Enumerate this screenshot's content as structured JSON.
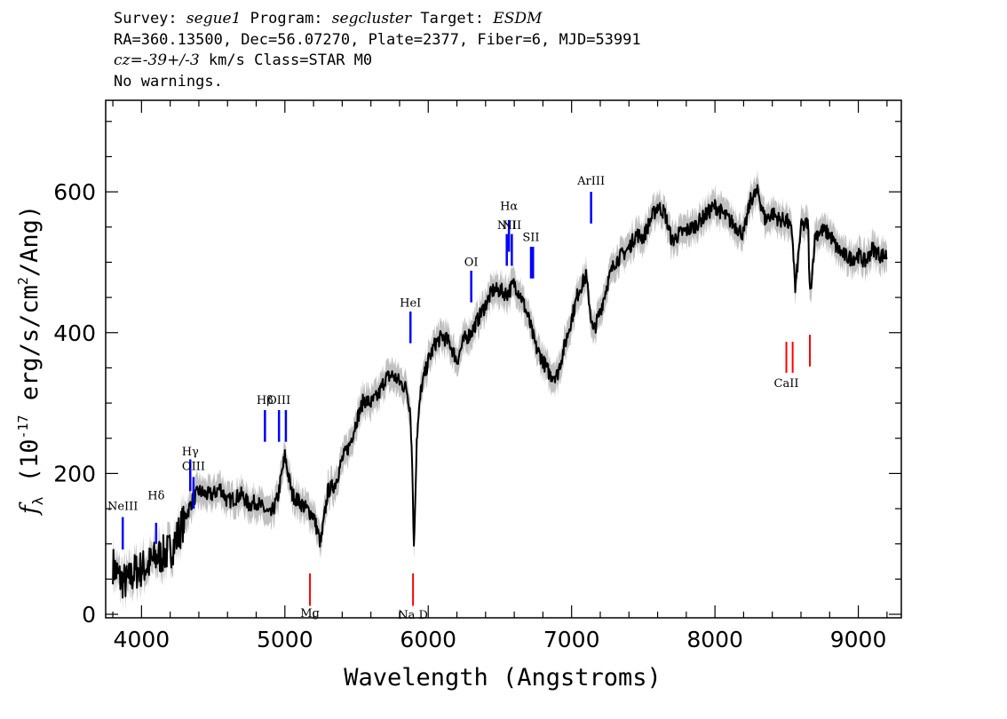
{
  "header": {
    "survey_label": "Survey:",
    "survey_value": "segue1",
    "program_label": "Program:",
    "program_value": "segcluster",
    "target_label": "Target:",
    "target_value": "ESDM",
    "line2": "RA=360.13500, Dec=56.07270, Plate=2377, Fiber=6, MJD=53991",
    "cz_label": "cz=",
    "cz_value": "-39+/-3",
    "cz_units": "km/s Class=STAR M0",
    "warnings": "No warnings."
  },
  "colors": {
    "flux": "#000000",
    "error_band": "#c0c0c0",
    "emission": "#0000ff",
    "absorption": "#ff0000",
    "axes": "#000000"
  },
  "chart_data": {
    "type": "line",
    "xlabel": "Wavelength (Angstroms)",
    "ylabel_parts": [
      "f",
      "λ",
      " (10",
      "-17",
      " erg/s/cm",
      "2",
      "/Ang)"
    ],
    "xlim": [
      3750,
      9300
    ],
    "ylim": [
      -5,
      730
    ],
    "x_major_ticks": [
      4000,
      5000,
      6000,
      7000,
      8000,
      9000
    ],
    "x_tick_labels": [
      "4000",
      "5000",
      "6000",
      "7000",
      "8000",
      "9000"
    ],
    "x_minor_step": 200,
    "y_major_ticks": [
      0,
      200,
      400,
      600
    ],
    "y_tick_labels": [
      "0",
      "200",
      "400",
      "600"
    ],
    "y_minor_step": 50,
    "flux_series": {
      "name": "flux",
      "x": [
        3800,
        3850,
        3900,
        3950,
        4000,
        4050,
        4100,
        4150,
        4200,
        4250,
        4300,
        4350,
        4400,
        4450,
        4500,
        4550,
        4600,
        4650,
        4700,
        4750,
        4800,
        4850,
        4900,
        4950,
        5000,
        5050,
        5100,
        5150,
        5200,
        5250,
        5300,
        5350,
        5400,
        5450,
        5500,
        5550,
        5600,
        5650,
        5700,
        5750,
        5800,
        5850,
        5875,
        5890,
        5900,
        5920,
        5950,
        6000,
        6050,
        6100,
        6150,
        6200,
        6250,
        6300,
        6350,
        6400,
        6450,
        6500,
        6550,
        6600,
        6650,
        6700,
        6750,
        6800,
        6850,
        6900,
        6950,
        7000,
        7050,
        7100,
        7150,
        7200,
        7250,
        7300,
        7350,
        7400,
        7450,
        7500,
        7550,
        7600,
        7650,
        7700,
        7750,
        7800,
        7850,
        7900,
        7950,
        8000,
        8050,
        8100,
        8150,
        8200,
        8250,
        8300,
        8350,
        8400,
        8450,
        8500,
        8540,
        8560,
        8600,
        8650,
        8662,
        8700,
        8750,
        8800,
        8850,
        8900,
        8950,
        9000,
        9050,
        9100,
        9150,
        9200
      ],
      "values": [
        70,
        50,
        45,
        60,
        65,
        70,
        80,
        85,
        90,
        110,
        135,
        160,
        175,
        170,
        170,
        180,
        160,
        165,
        170,
        155,
        160,
        150,
        140,
        165,
        225,
        170,
        160,
        150,
        140,
        100,
        175,
        185,
        220,
        240,
        275,
        305,
        300,
        310,
        335,
        340,
        330,
        320,
        290,
        200,
        90,
        250,
        320,
        360,
        385,
        395,
        385,
        360,
        390,
        400,
        420,
        440,
        460,
        460,
        455,
        470,
        450,
        420,
        380,
        360,
        340,
        340,
        380,
        420,
        460,
        480,
        400,
        430,
        470,
        500,
        510,
        520,
        540,
        535,
        560,
        580,
        570,
        530,
        540,
        545,
        550,
        560,
        570,
        580,
        570,
        560,
        550,
        540,
        590,
        600,
        560,
        570,
        560,
        560,
        540,
        460,
        550,
        555,
        450,
        540,
        545,
        540,
        520,
        510,
        505,
        510,
        500,
        520,
        510,
        510
      ]
    },
    "error_halfwidth": 18,
    "emission_lines": [
      {
        "label": "NeIII",
        "wave": 3869,
        "y_top": 138,
        "y_bot": 92,
        "label_y": 148
      },
      {
        "label": "Hδ",
        "wave": 4102,
        "y_top": 130,
        "y_bot": 100,
        "label_y": 163
      },
      {
        "label": "Hγ",
        "wave": 4340,
        "y_top": 220,
        "y_bot": 175,
        "label_y": 226
      },
      {
        "label": "OIII",
        "wave": 4363,
        "y_top": 195,
        "y_bot": 150,
        "label_y": 205
      },
      {
        "label": "Hβ",
        "wave": 4861,
        "y_top": 290,
        "y_bot": 245,
        "label_y": 299
      },
      {
        "label": "OIII",
        "wave": 4959,
        "y_top": 290,
        "y_bot": 245,
        "label_y": 299
      },
      {
        "label": "OIII",
        "wave": 5007,
        "y_top": 290,
        "y_bot": 245,
        "label_y": 0
      },
      {
        "label": "HeI",
        "wave": 5876,
        "y_top": 430,
        "y_bot": 385,
        "label_y": 437
      },
      {
        "label": "OI",
        "wave": 6300,
        "y_top": 488,
        "y_bot": 443,
        "label_y": 495
      },
      {
        "label": "NII",
        "wave": 6548,
        "y_top": 540,
        "y_bot": 495,
        "label_y": 547
      },
      {
        "label": "Hα",
        "wave": 6563,
        "y_top": 560,
        "y_bot": 515,
        "label_y": 574
      },
      {
        "label": "NII",
        "wave": 6583,
        "y_top": 540,
        "y_bot": 495,
        "label_y": 547
      },
      {
        "label": "SII",
        "wave": 6717,
        "y_top": 522,
        "y_bot": 477,
        "label_y": 530
      },
      {
        "label": "SII",
        "wave": 6731,
        "y_top": 522,
        "y_bot": 477,
        "label_y": 0
      },
      {
        "label": "ArIII",
        "wave": 7136,
        "y_top": 600,
        "y_bot": 555,
        "label_y": 610
      }
    ],
    "absorption_lines": [
      {
        "label": "Mg",
        "wave": 5175,
        "y_top": 58,
        "y_bot": 12,
        "label_y": -4
      },
      {
        "label": "Na D",
        "wave": 5894,
        "y_top": 58,
        "y_bot": 12,
        "label_y": -6
      },
      {
        "label": "CaII",
        "wave": 8498,
        "y_top": 387,
        "y_bot": 343,
        "label_y": 323
      },
      {
        "label": "CaII",
        "wave": 8542,
        "y_top": 387,
        "y_bot": 343,
        "label_y": 0
      },
      {
        "label": "CaII",
        "wave": 8662,
        "y_top": 397,
        "y_bot": 352,
        "label_y": 0
      }
    ]
  }
}
